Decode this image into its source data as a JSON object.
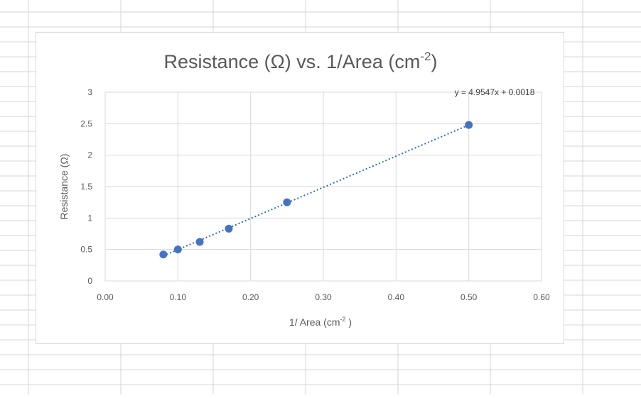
{
  "chart_data": {
    "type": "scatter",
    "title": "Resistance (Ω) vs. 1/Area (cm",
    "title_sup": "-2",
    "title_end": ")",
    "xlabel": "1/ Area (cm",
    "xlabel_sup": "-2",
    "xlabel_end": " )",
    "ylabel": "Resistance (Ω)",
    "xlim": [
      0,
      0.6
    ],
    "ylim": [
      0,
      3
    ],
    "x_ticks": [
      "0.00",
      "0.10",
      "0.20",
      "0.30",
      "0.40",
      "0.50",
      "0.60"
    ],
    "y_ticks": [
      "0",
      "0.5",
      "1",
      "1.5",
      "2",
      "2.5",
      "3"
    ],
    "x": [
      0.08,
      0.1,
      0.13,
      0.17,
      0.25,
      0.5
    ],
    "y": [
      0.42,
      0.5,
      0.62,
      0.83,
      1.25,
      2.48
    ],
    "trendline": {
      "type": "linear",
      "slope": 4.9547,
      "intercept": 0.0018,
      "equation_label": "y = 4.9547x + 0.0018",
      "style": "dotted"
    },
    "grid": true,
    "marker_color": "#4472c4",
    "trendline_color": "#2e6fb5"
  }
}
